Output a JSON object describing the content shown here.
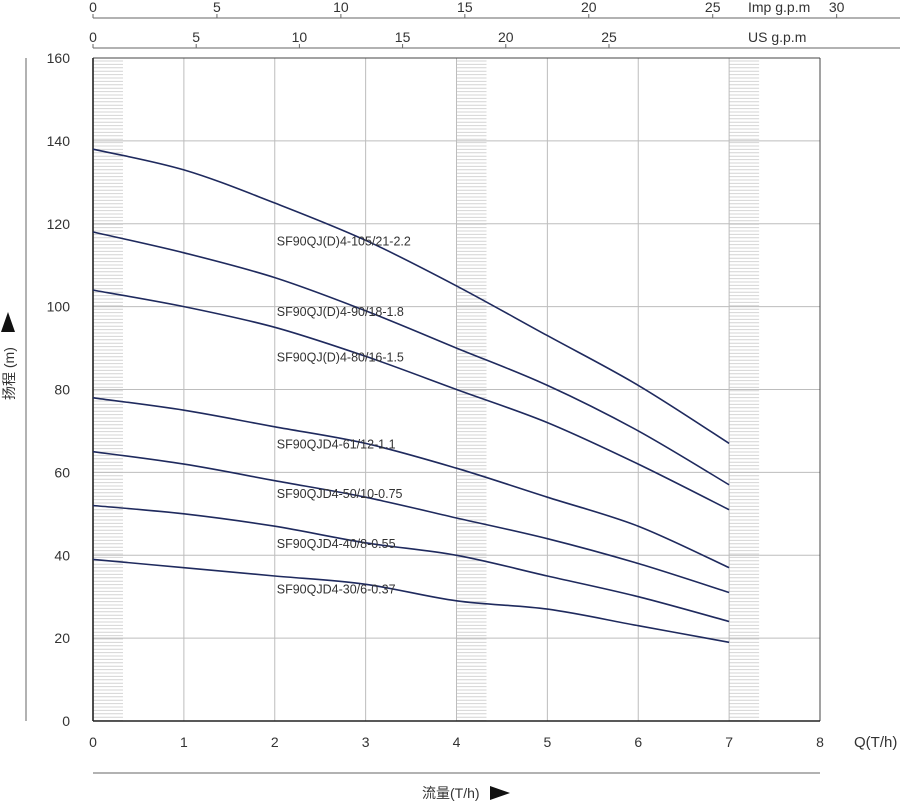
{
  "chart_data": {
    "type": "line",
    "xlabel_main": "流量(T/h)",
    "xlabel_unit": "Q(T/h)",
    "ylabel": "扬程 (m)",
    "xlim": [
      0,
      8
    ],
    "ylim": [
      0,
      160
    ],
    "x_ticks": [
      "0",
      "1",
      "2",
      "3",
      "4",
      "5",
      "6",
      "7",
      "8"
    ],
    "y_ticks": [
      "0",
      "20",
      "40",
      "60",
      "80",
      "100",
      "120",
      "140",
      "160"
    ],
    "top_axes": [
      {
        "label": "Imp g.p.m",
        "ticks": [
          "0",
          "5",
          "10",
          "15",
          "20",
          "25",
          "30"
        ],
        "per_unit": 3.666
      },
      {
        "label": "US g.p.m",
        "ticks": [
          "0",
          "5",
          "10",
          "15",
          "20",
          "25"
        ],
        "per_unit": 4.403
      }
    ],
    "highlight_bands": [
      [
        0,
        0.33
      ],
      [
        4.0,
        4.33
      ],
      [
        7.0,
        7.33
      ]
    ],
    "grid": true,
    "colors": {
      "curve": "#1f2a5e",
      "grid": "#bdbdbd",
      "band": "#d4d4d4",
      "text": "#333333"
    },
    "series": [
      {
        "name": "SF90QJ(D)4-105/21-2.2",
        "label_x": 2.0,
        "label_y": 116,
        "x": [
          0,
          1,
          2,
          3,
          4,
          5,
          6,
          7
        ],
        "y": [
          138,
          133,
          125,
          116,
          105,
          93,
          81,
          67
        ]
      },
      {
        "name": "SF90QJ(D)4-90/18-1.8",
        "label_x": 2.0,
        "label_y": 99,
        "x": [
          0,
          1,
          2,
          3,
          4,
          5,
          6,
          7
        ],
        "y": [
          118,
          113,
          107,
          99,
          90,
          81,
          70,
          57
        ]
      },
      {
        "name": "SF90QJ(D)4-80/16-1.5",
        "label_x": 2.0,
        "label_y": 88,
        "x": [
          0,
          1,
          2,
          3,
          4,
          5,
          6,
          7
        ],
        "y": [
          104,
          100,
          95,
          88,
          80,
          72,
          62,
          51
        ]
      },
      {
        "name": "SF90QJD4-61/12-1.1",
        "label_x": 2.0,
        "label_y": 67,
        "x": [
          0,
          1,
          2,
          3,
          4,
          5,
          6,
          7
        ],
        "y": [
          78,
          75,
          71,
          67,
          61,
          54,
          47,
          37
        ]
      },
      {
        "name": "SF90QJD4-50/10-0.75",
        "label_x": 2.0,
        "label_y": 55,
        "x": [
          0,
          1,
          2,
          3,
          4,
          5,
          6,
          7
        ],
        "y": [
          65,
          62,
          58,
          54,
          49,
          44,
          38,
          31
        ]
      },
      {
        "name": "SF90QJD4-40/8-0.55",
        "label_x": 2.0,
        "label_y": 43,
        "x": [
          0,
          1,
          2,
          3,
          4,
          5,
          6,
          7
        ],
        "y": [
          52,
          50,
          47,
          43,
          40,
          35,
          30,
          24
        ]
      },
      {
        "name": "SF90QJD4-30/6-0.37",
        "label_x": 2.0,
        "label_y": 32,
        "x": [
          0,
          1,
          2,
          3,
          4,
          5,
          6,
          7
        ],
        "y": [
          39,
          37,
          35,
          33,
          29,
          27,
          23,
          19
        ]
      }
    ]
  }
}
